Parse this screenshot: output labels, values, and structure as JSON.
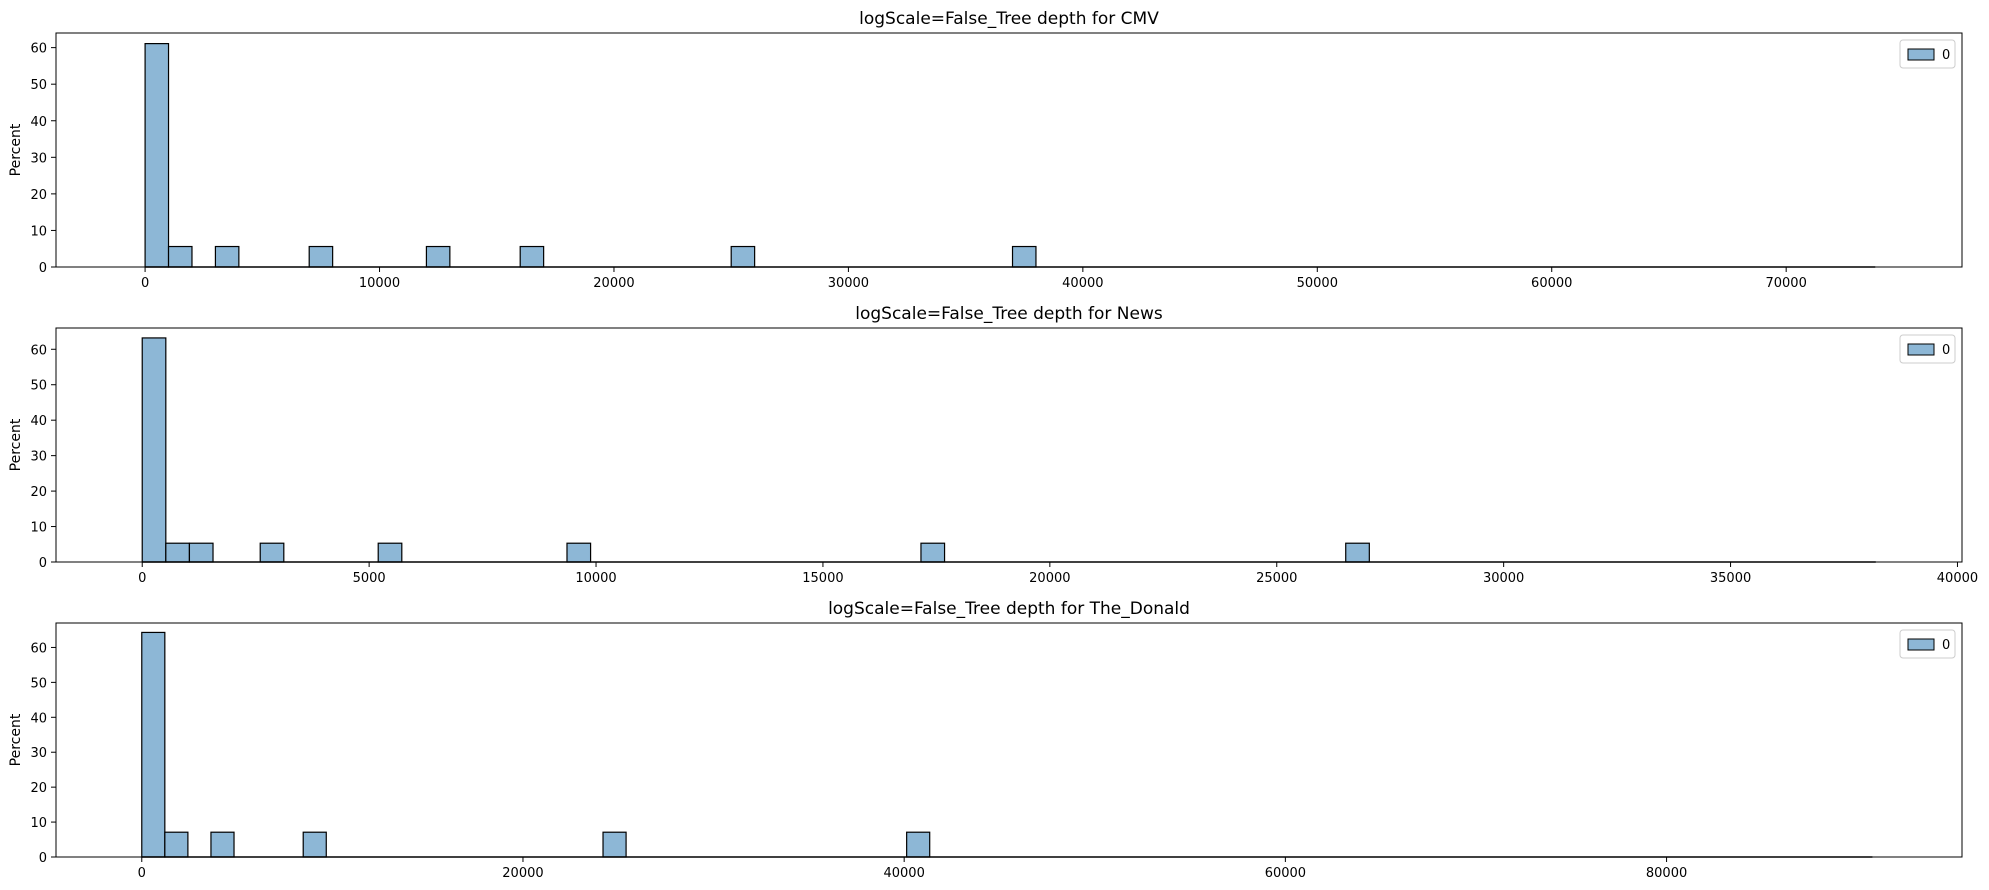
{
  "chart_data": [
    {
      "type": "bar",
      "title": "logScale=False_Tree depth for CMV",
      "xlabel": "",
      "ylabel": "Percent",
      "xlim": [
        -3800,
        77500
      ],
      "ylim": [
        0,
        64
      ],
      "xticks": [
        0,
        10000,
        20000,
        30000,
        40000,
        50000,
        60000,
        70000
      ],
      "yticks": [
        0,
        10,
        20,
        30,
        40,
        50,
        60
      ],
      "bin_width": 1000,
      "data_max": 73800,
      "bins": [
        {
          "start": 0,
          "value": 61.1
        },
        {
          "start": 1000,
          "value": 5.6
        },
        {
          "start": 3000,
          "value": 5.6
        },
        {
          "start": 7000,
          "value": 5.6
        },
        {
          "start": 12000,
          "value": 5.6
        },
        {
          "start": 16000,
          "value": 5.6
        },
        {
          "start": 25000,
          "value": 5.6
        },
        {
          "start": 37000,
          "value": 5.6
        }
      ],
      "legend": {
        "label": "0",
        "position": "upper right"
      },
      "color": "#8db7d6",
      "edge_color": "#000000",
      "grid": false
    },
    {
      "type": "bar",
      "title": "logScale=False_Tree depth for News",
      "xlabel": "",
      "ylabel": "Percent",
      "xlim": [
        -1900,
        40100
      ],
      "ylim": [
        0,
        66
      ],
      "xticks": [
        0,
        5000,
        10000,
        15000,
        20000,
        25000,
        30000,
        35000,
        40000
      ],
      "yticks": [
        0,
        10,
        20,
        30,
        40,
        50,
        60
      ],
      "bin_width": 520,
      "data_max": 38200,
      "bins": [
        {
          "start": 0,
          "value": 63.2
        },
        {
          "start": 520,
          "value": 5.3
        },
        {
          "start": 1040,
          "value": 5.3
        },
        {
          "start": 2600,
          "value": 5.3
        },
        {
          "start": 5200,
          "value": 5.3
        },
        {
          "start": 9360,
          "value": 5.3
        },
        {
          "start": 17160,
          "value": 5.3
        },
        {
          "start": 26520,
          "value": 5.3
        }
      ],
      "legend": {
        "label": "0",
        "position": "upper right"
      },
      "color": "#8db7d6",
      "edge_color": "#000000",
      "grid": false
    },
    {
      "type": "bar",
      "title": "logScale=False_Tree depth for The_Donald",
      "xlabel": "",
      "ylabel": "Percent",
      "xlim": [
        -4500,
        95500
      ],
      "ylim": [
        0,
        67
      ],
      "xticks": [
        0,
        20000,
        40000,
        60000,
        80000
      ],
      "yticks": [
        0,
        10,
        20,
        30,
        40,
        50,
        60
      ],
      "bin_width": 1210,
      "data_max": 90800,
      "bins": [
        {
          "start": 0,
          "value": 64.3
        },
        {
          "start": 1210,
          "value": 7.1
        },
        {
          "start": 3630,
          "value": 7.1
        },
        {
          "start": 8470,
          "value": 7.1
        },
        {
          "start": 24200,
          "value": 7.1
        },
        {
          "start": 40130,
          "value": 7.1
        }
      ],
      "legend": {
        "label": "0",
        "position": "upper right"
      },
      "color": "#8db7d6",
      "edge_color": "#000000",
      "grid": false
    }
  ]
}
